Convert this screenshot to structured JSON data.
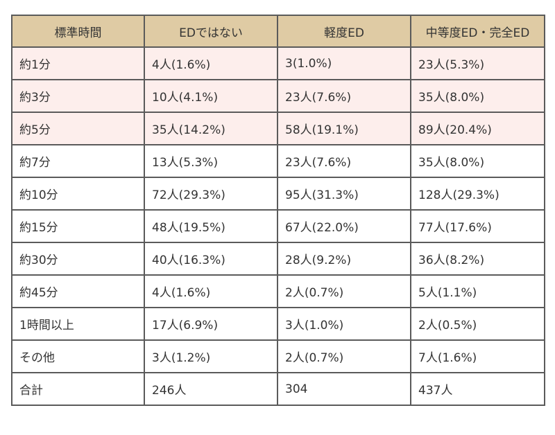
{
  "table": {
    "headers": [
      "標準時間",
      "EDではない",
      "軽度ED",
      "中等度ED・完全ED"
    ],
    "rows": [
      {
        "cells": [
          "約1分",
          "4人(1.6%)",
          "3(1.0%)",
          "23人(5.3%)"
        ],
        "highlight": true
      },
      {
        "cells": [
          "約3分",
          "10人(4.1%)",
          "23人(7.6%)",
          "35人(8.0%)"
        ],
        "highlight": true
      },
      {
        "cells": [
          "約5分",
          "35人(14.2%)",
          "58人(19.1%)",
          "89人(20.4%)"
        ],
        "highlight": true
      },
      {
        "cells": [
          "約7分",
          "13人(5.3%)",
          "23人(7.6%)",
          "35人(8.0%)"
        ],
        "highlight": false
      },
      {
        "cells": [
          "約10分",
          "72人(29.3%)",
          "95人(31.3%)",
          "128人(29.3%)"
        ],
        "highlight": false
      },
      {
        "cells": [
          "約15分",
          "48人(19.5%)",
          "67人(22.0%)",
          "77人(17.6%)"
        ],
        "highlight": false
      },
      {
        "cells": [
          "約30分",
          "40人(16.3%)",
          "28人(9.2%)",
          "36人(8.2%)"
        ],
        "highlight": false
      },
      {
        "cells": [
          "約45分",
          "4人(1.6%)",
          "2人(0.7%)",
          "5人(1.1%)"
        ],
        "highlight": false
      },
      {
        "cells": [
          "1時間以上",
          "17人(6.9%)",
          "3人(1.0%)",
          "2人(0.5%)"
        ],
        "highlight": false
      },
      {
        "cells": [
          "その他",
          "3人(1.2%)",
          "2人(0.7%)",
          "7人(1.6%)"
        ],
        "highlight": false
      },
      {
        "cells": [
          "合計",
          "246人",
          "304",
          "437人"
        ],
        "highlight": false
      }
    ]
  },
  "colors": {
    "header_bg": "#dfcba4",
    "highlight_bg": "#fdeeec",
    "border": "#5a5a5a"
  }
}
